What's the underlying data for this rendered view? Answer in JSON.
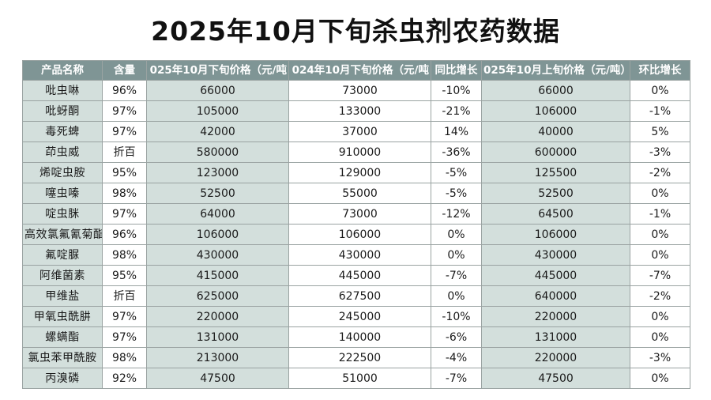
{
  "title": "2025年10月下旬杀虫剂农药数据",
  "table": {
    "headers": [
      "产品名称",
      "含量",
      "025年10月下旬价格（元/吨",
      "024年10月下旬价格（元/吨",
      "同比增长",
      "025年10月上旬价格（元/吨）",
      "环比增长"
    ],
    "rows": [
      [
        "吡虫啉",
        "96%",
        "66000",
        "73000",
        "-10%",
        "66000",
        "0%"
      ],
      [
        "吡蚜酮",
        "97%",
        "105000",
        "133000",
        "-21%",
        "106000",
        "-1%"
      ],
      [
        "毒死蜱",
        "97%",
        "42000",
        "37000",
        "14%",
        "40000",
        "5%"
      ],
      [
        "茚虫威",
        "折百",
        "580000",
        "910000",
        "-36%",
        "600000",
        "-3%"
      ],
      [
        "烯啶虫胺",
        "95%",
        "123000",
        "129000",
        "-5%",
        "125500",
        "-2%"
      ],
      [
        "噻虫嗪",
        "98%",
        "52500",
        "55000",
        "-5%",
        "52500",
        "0%"
      ],
      [
        "啶虫脒",
        "97%",
        "64000",
        "73000",
        "-12%",
        "64500",
        "-1%"
      ],
      [
        "高效氯氟氰菊酯",
        "96%",
        "106000",
        "106000",
        "0%",
        "106000",
        "0%"
      ],
      [
        "氟啶脲",
        "98%",
        "430000",
        "430000",
        "0%",
        "430000",
        "0%"
      ],
      [
        "阿维菌素",
        "95%",
        "415000",
        "445000",
        "-7%",
        "445000",
        "-7%"
      ],
      [
        "甲维盐",
        "折百",
        "625000",
        "627500",
        "0%",
        "640000",
        "-2%"
      ],
      [
        "甲氧虫酰肼",
        "97%",
        "220000",
        "245000",
        "-10%",
        "220000",
        "0%"
      ],
      [
        "螺螨酯",
        "97%",
        "131000",
        "140000",
        "-6%",
        "131000",
        "0%"
      ],
      [
        "氯虫苯甲酰胺",
        "98%",
        "213000",
        "222500",
        "-4%",
        "220000",
        "-3%"
      ],
      [
        "丙溴磷",
        "92%",
        "47500",
        "51000",
        "-7%",
        "47500",
        "0%"
      ]
    ]
  },
  "colors": {
    "header_bg": "#7f9595",
    "header_text": "#ffffff",
    "shade_bg": "#d3dfdc",
    "border": "#9aa3a2"
  }
}
